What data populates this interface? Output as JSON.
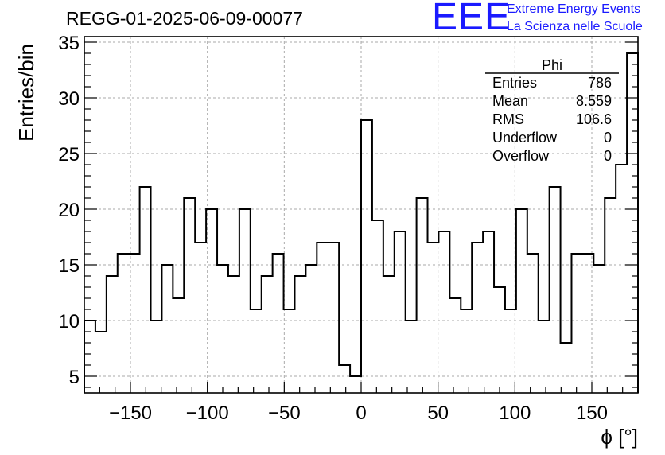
{
  "header": {
    "title": "REGG-01-2025-06-09-00077",
    "logo_mark": "EEE",
    "logo_line1": "Extreme Energy Events",
    "logo_line2": "La Scienza nelle Scuole",
    "logo_color": "#1a1aff"
  },
  "stats": {
    "name": "Phi",
    "rows": [
      {
        "label": "Entries",
        "value": "786"
      },
      {
        "label": "Mean",
        "value": "8.559"
      },
      {
        "label": "RMS",
        "value": "106.6"
      },
      {
        "label": "Underflow",
        "value": "0"
      },
      {
        "label": "Overflow",
        "value": "0"
      }
    ]
  },
  "chart_data": {
    "type": "bar",
    "style": "step-histogram",
    "xlabel": "ϕ [°]",
    "ylabel": "Entries/bin",
    "xlim": [
      -180,
      180
    ],
    "ylim": [
      3.5,
      35.5
    ],
    "grid": true,
    "bin_edges_start": -180,
    "bin_width": 7.2,
    "values": [
      10,
      9,
      14,
      16,
      16,
      22,
      10,
      15,
      12,
      21,
      17,
      20,
      15,
      14,
      20,
      11,
      14,
      16,
      11,
      14,
      15,
      17,
      17,
      6,
      5,
      28,
      19,
      14,
      18,
      10,
      21,
      17,
      18,
      12,
      11,
      17,
      18,
      13,
      11,
      20,
      16,
      10,
      22,
      8,
      16,
      16,
      15,
      21,
      24,
      34
    ],
    "xticks": [
      {
        "value": -150,
        "label": "−150"
      },
      {
        "value": -100,
        "label": "−100"
      },
      {
        "value": -50,
        "label": "−50"
      },
      {
        "value": 0,
        "label": "0"
      },
      {
        "value": 50,
        "label": "50"
      },
      {
        "value": 100,
        "label": "100"
      },
      {
        "value": 150,
        "label": "150"
      }
    ],
    "yticks": [
      {
        "value": 5,
        "label": "5"
      },
      {
        "value": 10,
        "label": "10"
      },
      {
        "value": 15,
        "label": "15"
      },
      {
        "value": 20,
        "label": "20"
      },
      {
        "value": 25,
        "label": "25"
      },
      {
        "value": 30,
        "label": "30"
      },
      {
        "value": 35,
        "label": "35"
      }
    ]
  }
}
